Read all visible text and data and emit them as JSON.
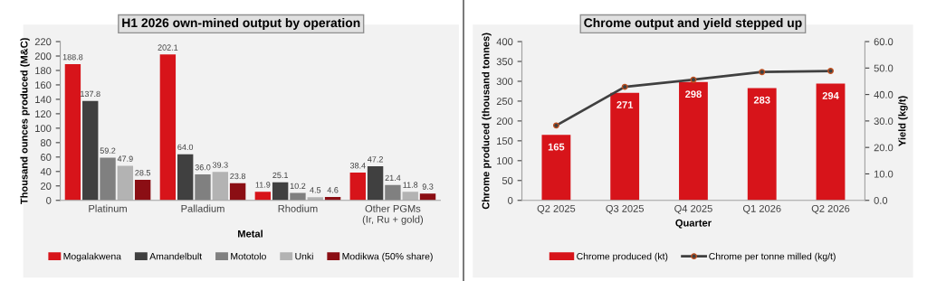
{
  "chart_data": [
    {
      "type": "bar",
      "title": "H1 2026 own-mined output by operation",
      "xlabel": "Metal",
      "ylabel": "Thousand ounces produced (M&C)",
      "categories": [
        "Platinum",
        "Palladium",
        "Rhodium",
        "Other PGMs\n(Ir, Ru + gold)"
      ],
      "series": [
        {
          "name": "Mogalakwena",
          "color": "#d7141a",
          "values": [
            188.8,
            202.1,
            11.9,
            38.4
          ],
          "value_labels": [
            "188.8",
            "202.1",
            "11.9",
            "38.4"
          ]
        },
        {
          "name": "Amandelbult",
          "color": "#404040",
          "values": [
            137.8,
            64.0,
            25.1,
            47.2
          ],
          "value_labels": [
            "137.8",
            "64.0",
            "25.1",
            "47.2"
          ]
        },
        {
          "name": "Mototolo",
          "color": "#808080",
          "values": [
            59.2,
            36.0,
            10.2,
            21.4
          ],
          "value_labels": [
            "59.2",
            "36.0",
            "10.2",
            "21.4"
          ]
        },
        {
          "name": "Unki",
          "color": "#b3b3b3",
          "values": [
            47.9,
            39.3,
            4.5,
            11.8
          ],
          "value_labels": [
            "47.9",
            "39.3",
            "4.5",
            "11.8"
          ]
        },
        {
          "name": "Modikwa (50% share)",
          "color": "#8b0e14",
          "values": [
            28.5,
            23.8,
            4.6,
            9.3
          ],
          "value_labels": [
            "28.5",
            "23.8",
            "4.6",
            "9.3"
          ]
        }
      ],
      "ylim": [
        0,
        220
      ],
      "yticks": [
        0,
        20,
        40,
        60,
        80,
        100,
        120,
        140,
        160,
        180,
        200,
        220
      ],
      "legend": "bottom",
      "grid": false
    },
    {
      "type": "bar",
      "title": "Chrome output and yield stepped up",
      "xlabel": "Quarter",
      "ylabel": "Chrome produced (thousand tonnes)",
      "y2label": "Yield (kg/t)",
      "categories": [
        "Q2 2025",
        "Q3 2025",
        "Q4 2025",
        "Q1 2026",
        "Q2 2026"
      ],
      "series": [
        {
          "name": "Chrome produced (kt)",
          "color": "#d7141a",
          "values": [
            165,
            271,
            298,
            283,
            294
          ],
          "value_labels": [
            "165",
            "271",
            "298",
            "283",
            "294"
          ]
        },
        {
          "name": "Chrome per tonne milled (kg/t)",
          "type": "line",
          "axis": "y2",
          "color": "#404040",
          "values": [
            28.3,
            42.9,
            45.6,
            48.5,
            48.9
          ]
        }
      ],
      "ylim": [
        0,
        400
      ],
      "yticks": [
        0,
        50,
        100,
        150,
        200,
        250,
        300,
        350,
        400
      ],
      "y2lim": [
        0,
        60
      ],
      "y2ticks": [
        {
          "value": 0,
          "label": "0.0"
        },
        {
          "value": 10,
          "label": "10.0"
        },
        {
          "value": 20,
          "label": "20.0"
        },
        {
          "value": 30,
          "label": "30.0"
        },
        {
          "value": 40,
          "label": "40.0"
        },
        {
          "value": 50,
          "label": "50.0"
        },
        {
          "value": 60,
          "label": "60.0"
        }
      ],
      "legend": "bottom",
      "marker": "circle",
      "line_style": "solid",
      "grid": false
    }
  ]
}
